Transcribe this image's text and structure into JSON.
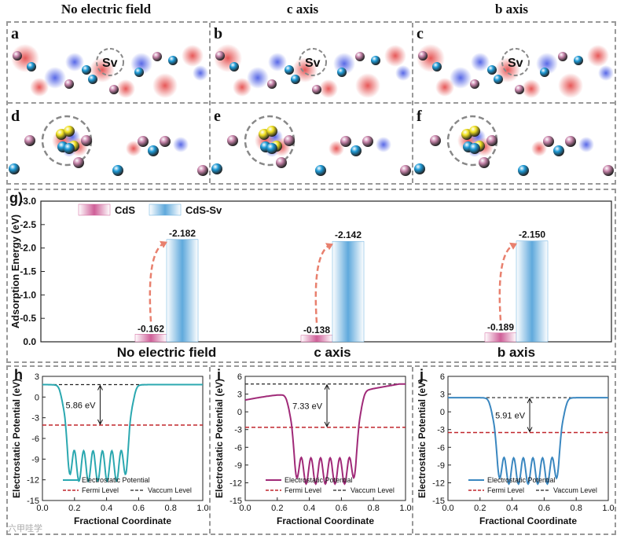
{
  "column_titles": [
    "No electric field",
    "c axis",
    "b axis"
  ],
  "panel_labels": {
    "top": [
      "a",
      "b",
      "c"
    ],
    "middle": [
      "d",
      "e",
      "f"
    ],
    "g": "g)",
    "bottom": [
      "h",
      "i",
      "j"
    ]
  },
  "vacancy_label": "Sv",
  "colors": {
    "cd": "#1e9ad6",
    "s": "#c986ac",
    "adsorbate": "#f0e020",
    "pos": "#e23b3b",
    "neg": "#3b4ee2",
    "cds_bar": "#cf5f98",
    "cdssv_bar": "#5fa9dc",
    "arrow": "#e8806e",
    "fermi": "#c0262c",
    "vacuum": "#222222"
  },
  "chart_data": [
    {
      "type": "bar",
      "panel": "g",
      "categories": [
        "No electric field",
        "c axis",
        "b axis"
      ],
      "series": [
        {
          "name": "CdS",
          "values": [
            -0.162,
            -0.138,
            -0.189
          ]
        },
        {
          "name": "CdS-Sv",
          "values": [
            -2.182,
            -2.142,
            -2.15
          ]
        }
      ],
      "value_labels": {
        "CdS": [
          "-0.162",
          "-0.138",
          "-0.189"
        ],
        "CdS-Sv": [
          "-2.182",
          "-2.142",
          "-2.150"
        ]
      },
      "ylabel": "Adsorption Energy (eV)",
      "ylim": [
        0.0,
        -3.0
      ],
      "yticks": [
        "0.0",
        "-0.5",
        "-1.0",
        "-1.5",
        "-2.0",
        "-2.5",
        "-3.0"
      ],
      "legend": "top-left"
    },
    {
      "type": "line",
      "panel": "h",
      "xlabel": "Fractional Coordinate",
      "ylabel": "Electrostatic Potential (eV)",
      "xlim": [
        0.0,
        1.0
      ],
      "ylim": [
        -15,
        3
      ],
      "xticks": [
        "0.0",
        "0.2",
        "0.4",
        "0.6",
        "0.8",
        "1.0"
      ],
      "yticks": [
        "-15",
        "-12",
        "-9",
        "-6",
        "-3",
        "0",
        "3"
      ],
      "vacuum_level": 1.8,
      "fermi_level": -4.06,
      "annotation": "5.86 eV",
      "well": [
        0.14,
        0.55
      ],
      "color": "#2ba8b0",
      "legend": [
        "Electrostatic Potential",
        "Fermi Level",
        "Vaccum Level"
      ]
    },
    {
      "type": "line",
      "panel": "i",
      "xlabel": "Fractional Coordinate",
      "ylabel": "Electrostatic Potential (eV)",
      "xlim": [
        0.0,
        1.0
      ],
      "ylim": [
        -15,
        6
      ],
      "xticks": [
        "0.0",
        "0.2",
        "0.4",
        "0.6",
        "0.8",
        "1.0"
      ],
      "yticks": [
        "-15",
        "-12",
        "-9",
        "-6",
        "-3",
        "0",
        "3",
        "6"
      ],
      "vacuum_level": 4.7,
      "fermi_level": -2.63,
      "annotation": "7.33 eV",
      "well": [
        0.29,
        0.71
      ],
      "color": "#a02a78",
      "legend": [
        "Electrostatic Potential",
        "Fermi Level",
        "Vaccum Level"
      ]
    },
    {
      "type": "line",
      "panel": "j",
      "xlabel": "Fractional Coordinate",
      "ylabel": "Electrostatic Potential (eV)",
      "xlim": [
        0.0,
        1.0
      ],
      "ylim": [
        -15,
        6
      ],
      "xticks": [
        "0.0",
        "0.2",
        "0.4",
        "0.6",
        "0.8",
        "1.0"
      ],
      "yticks": [
        "-15",
        "-12",
        "-9",
        "-6",
        "-3",
        "0",
        "3",
        "6"
      ],
      "vacuum_level": 2.4,
      "fermi_level": -3.51,
      "annotation": "5.91 eV",
      "well": [
        0.29,
        0.71
      ],
      "color": "#3a87c0",
      "legend": [
        "Electrostatic Potential",
        "Fermi Level",
        "Vaccum Level"
      ]
    }
  ],
  "watermark": "六甲哇学"
}
